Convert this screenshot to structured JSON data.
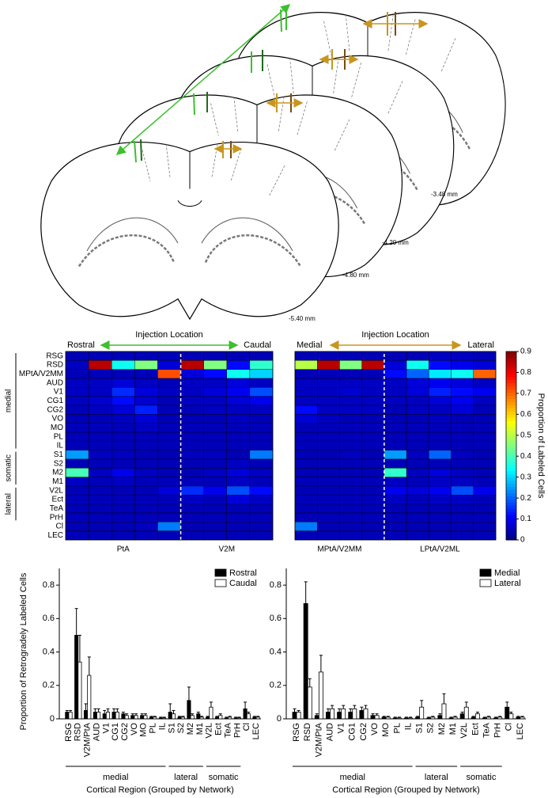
{
  "brain_sections": {
    "levels": [
      "-3.48 mm",
      "-4.20 mm",
      "-4.80 mm",
      "-5.40 mm"
    ]
  },
  "chart_data": [
    {
      "type": "heatmap",
      "annotation": "Injection Location",
      "direction": [
        "Rostral",
        "Caudal"
      ],
      "arrow_color": "#3dbf2e",
      "row_groups": [
        {
          "name": "medial",
          "rows": [
            "RSG",
            "RSD",
            "MPtA/V2MM",
            "AUD",
            "V1",
            "CG1",
            "CG2",
            "VO",
            "MO",
            "PL",
            "IL"
          ]
        },
        {
          "name": "somatic",
          "rows": [
            "S1",
            "S2",
            "M2",
            "M1"
          ]
        },
        {
          "name": "lateral",
          "rows": [
            "V2L",
            "Ect",
            "TeA",
            "PrH"
          ]
        },
        {
          "name": null,
          "rows": [
            "Cl",
            "LEC"
          ]
        }
      ],
      "column_groups": [
        {
          "name": "PtA",
          "values": [
            [
              0.05,
              0.05,
              0.05,
              0.05,
              0.05
            ],
            [
              0.06,
              0.85,
              0.35,
              0.45,
              0.08
            ],
            [
              0.05,
              0.05,
              0.05,
              0.05,
              0.72
            ],
            [
              0.06,
              0.06,
              0.08,
              0.06,
              0.05
            ],
            [
              0.06,
              0.06,
              0.15,
              0.08,
              0.06
            ],
            [
              0.06,
              0.07,
              0.12,
              0.07,
              0.05
            ],
            [
              0.05,
              0.06,
              0.08,
              0.14,
              0.05
            ],
            [
              0.05,
              0.05,
              0.06,
              0.08,
              0.05
            ],
            [
              0.05,
              0.05,
              0.05,
              0.06,
              0.05
            ],
            [
              0.05,
              0.05,
              0.05,
              0.05,
              0.05
            ],
            [
              0.05,
              0.05,
              0.05,
              0.05,
              0.05
            ],
            [
              0.25,
              0.06,
              0.06,
              0.05,
              0.05
            ],
            [
              0.05,
              0.05,
              0.05,
              0.05,
              0.05
            ],
            [
              0.4,
              0.06,
              0.1,
              0.06,
              0.05
            ],
            [
              0.06,
              0.05,
              0.06,
              0.05,
              0.05
            ],
            [
              0.05,
              0.05,
              0.05,
              0.05,
              0.08
            ],
            [
              0.05,
              0.05,
              0.05,
              0.05,
              0.05
            ],
            [
              0.05,
              0.05,
              0.05,
              0.05,
              0.05
            ],
            [
              0.05,
              0.05,
              0.05,
              0.05,
              0.05
            ],
            [
              0.05,
              0.05,
              0.05,
              0.06,
              0.22
            ],
            [
              0.05,
              0.05,
              0.05,
              0.05,
              0.05
            ]
          ]
        },
        {
          "name": "V2M",
          "values": [
            [
              0.05,
              0.05,
              0.05,
              0.05
            ],
            [
              0.85,
              0.45,
              0.12,
              0.38
            ],
            [
              0.08,
              0.12,
              0.35,
              0.3
            ],
            [
              0.06,
              0.06,
              0.08,
              0.06
            ],
            [
              0.06,
              0.08,
              0.1,
              0.18
            ],
            [
              0.06,
              0.06,
              0.08,
              0.1
            ],
            [
              0.05,
              0.06,
              0.06,
              0.06
            ],
            [
              0.05,
              0.05,
              0.06,
              0.05
            ],
            [
              0.05,
              0.05,
              0.05,
              0.05
            ],
            [
              0.05,
              0.05,
              0.05,
              0.05
            ],
            [
              0.05,
              0.05,
              0.05,
              0.05
            ],
            [
              0.06,
              0.06,
              0.05,
              0.22
            ],
            [
              0.05,
              0.05,
              0.06,
              0.05
            ],
            [
              0.05,
              0.06,
              0.08,
              0.06
            ],
            [
              0.05,
              0.05,
              0.06,
              0.05
            ],
            [
              0.15,
              0.1,
              0.18,
              0.12
            ],
            [
              0.06,
              0.05,
              0.08,
              0.06
            ],
            [
              0.05,
              0.05,
              0.05,
              0.05
            ],
            [
              0.05,
              0.05,
              0.05,
              0.05
            ],
            [
              0.05,
              0.05,
              0.05,
              0.05
            ],
            [
              0.05,
              0.05,
              0.05,
              0.05
            ]
          ]
        }
      ]
    },
    {
      "type": "heatmap",
      "annotation": "Injection Location",
      "direction": [
        "Medial",
        "Lateral"
      ],
      "arrow_color": "#c8961e",
      "column_groups": [
        {
          "name": "MPtA/V2MM",
          "values": [
            [
              0.05,
              0.05,
              0.05,
              0.05
            ],
            [
              0.5,
              0.85,
              0.45,
              0.85
            ],
            [
              0.05,
              0.05,
              0.05,
              0.05
            ],
            [
              0.06,
              0.06,
              0.06,
              0.06
            ],
            [
              0.06,
              0.06,
              0.07,
              0.06
            ],
            [
              0.06,
              0.06,
              0.06,
              0.06
            ],
            [
              0.12,
              0.06,
              0.06,
              0.06
            ],
            [
              0.08,
              0.06,
              0.05,
              0.05
            ],
            [
              0.05,
              0.05,
              0.05,
              0.05
            ],
            [
              0.05,
              0.05,
              0.05,
              0.05
            ],
            [
              0.05,
              0.05,
              0.05,
              0.05
            ],
            [
              0.05,
              0.05,
              0.06,
              0.05
            ],
            [
              0.05,
              0.05,
              0.05,
              0.05
            ],
            [
              0.05,
              0.05,
              0.05,
              0.05
            ],
            [
              0.05,
              0.05,
              0.05,
              0.05
            ],
            [
              0.05,
              0.05,
              0.05,
              0.05
            ],
            [
              0.05,
              0.05,
              0.05,
              0.05
            ],
            [
              0.05,
              0.05,
              0.05,
              0.05
            ],
            [
              0.05,
              0.05,
              0.05,
              0.05
            ],
            [
              0.22,
              0.05,
              0.05,
              0.05
            ],
            [
              0.05,
              0.05,
              0.05,
              0.05
            ]
          ]
        },
        {
          "name": "LPtA/V2ML",
          "values": [
            [
              0.05,
              0.05,
              0.06,
              0.06,
              0.05
            ],
            [
              0.08,
              0.35,
              0.12,
              0.1,
              0.08
            ],
            [
              0.12,
              0.2,
              0.32,
              0.35,
              0.7
            ],
            [
              0.06,
              0.08,
              0.1,
              0.08,
              0.06
            ],
            [
              0.06,
              0.08,
              0.14,
              0.12,
              0.1
            ],
            [
              0.06,
              0.06,
              0.08,
              0.1,
              0.06
            ],
            [
              0.05,
              0.06,
              0.06,
              0.08,
              0.05
            ],
            [
              0.05,
              0.05,
              0.06,
              0.05,
              0.05
            ],
            [
              0.05,
              0.05,
              0.05,
              0.05,
              0.05
            ],
            [
              0.05,
              0.05,
              0.05,
              0.05,
              0.05
            ],
            [
              0.05,
              0.05,
              0.05,
              0.05,
              0.05
            ],
            [
              0.25,
              0.06,
              0.2,
              0.06,
              0.05
            ],
            [
              0.05,
              0.05,
              0.05,
              0.05,
              0.05
            ],
            [
              0.38,
              0.06,
              0.08,
              0.06,
              0.05
            ],
            [
              0.06,
              0.05,
              0.06,
              0.06,
              0.05
            ],
            [
              0.1,
              0.08,
              0.1,
              0.18,
              0.1
            ],
            [
              0.06,
              0.05,
              0.06,
              0.06,
              0.05
            ],
            [
              0.05,
              0.05,
              0.05,
              0.05,
              0.05
            ],
            [
              0.05,
              0.05,
              0.05,
              0.05,
              0.05
            ],
            [
              0.05,
              0.05,
              0.05,
              0.05,
              0.05
            ],
            [
              0.05,
              0.05,
              0.05,
              0.05,
              0.05
            ]
          ]
        }
      ],
      "colorbar": {
        "label": "Proportion of Labeled Cells",
        "clim": [
          0,
          0.9
        ],
        "ticks": [
          0,
          0.1,
          0.2,
          0.3,
          0.4,
          0.5,
          0.6,
          0.7,
          0.8,
          0.9
        ]
      }
    },
    {
      "type": "bar",
      "ylabel": "Proportion of Retrogradely Labeled Cells",
      "xlabel": "Cortical Region (Grouped by Network)",
      "legend": "upper right",
      "category_groups": [
        {
          "name": "medial",
          "categories": [
            "RSG",
            "RSD",
            "V2M/PtA",
            "AUD",
            "V1",
            "CG1",
            "CG2",
            "VO",
            "MO",
            "PL",
            "IL"
          ]
        },
        {
          "name": "lateral",
          "categories": [
            "S1",
            "S2",
            "M2",
            "M1"
          ]
        },
        {
          "name": "somatic",
          "categories": [
            "V2L",
            "Ect",
            "TeA",
            "PrH"
          ]
        },
        {
          "name": null,
          "categories": [
            "Cl",
            "LEC"
          ]
        }
      ],
      "series": [
        {
          "name": "Rostral",
          "color": "#000000",
          "values": [
            0.04,
            0.5,
            0.05,
            0.04,
            0.03,
            0.04,
            0.03,
            0.02,
            0.02,
            0.01,
            0.005,
            0.04,
            0.01,
            0.11,
            0.03,
            0.01,
            0.01,
            0.005,
            0.005,
            0.06,
            0.01
          ],
          "errors": [
            0.01,
            0.16,
            0.04,
            0.02,
            0.02,
            0.02,
            0.01,
            0.01,
            0.01,
            0.005,
            0.005,
            0.05,
            0.005,
            0.08,
            0.01,
            0.005,
            0.005,
            0.005,
            0.005,
            0.04,
            0.005
          ]
        },
        {
          "name": "Caudal",
          "color": "#ffffff",
          "values": [
            0.04,
            0.34,
            0.26,
            0.04,
            0.04,
            0.04,
            0.02,
            0.02,
            0.02,
            0.01,
            0.005,
            0.03,
            0.01,
            0.02,
            0.01,
            0.07,
            0.02,
            0.01,
            0.005,
            0.03,
            0.01
          ],
          "errors": [
            0.01,
            0.16,
            0.11,
            0.02,
            0.02,
            0.02,
            0.01,
            0.01,
            0.01,
            0.005,
            0.005,
            0.02,
            0.005,
            0.01,
            0.005,
            0.03,
            0.01,
            0.005,
            0.005,
            0.01,
            0.005
          ]
        }
      ],
      "ylim": [
        0,
        0.9
      ],
      "yticks": [
        0,
        0.2,
        0.4,
        0.6,
        0.8
      ]
    },
    {
      "type": "bar",
      "xlabel": "Cortical Region (Grouped by Network)",
      "legend": "upper right",
      "category_groups": [
        {
          "name": "medial",
          "categories": [
            "RSG",
            "RSD",
            "V2M/PtA",
            "AUD",
            "V1",
            "CG1",
            "CG2",
            "VO",
            "MO",
            "PL",
            "IL"
          ]
        },
        {
          "name": "lateral",
          "categories": [
            "S1",
            "S2",
            "M2",
            "M1"
          ]
        },
        {
          "name": "somatic",
          "categories": [
            "V2L",
            "Ect",
            "TeA",
            "PrH"
          ]
        },
        {
          "name": null,
          "categories": [
            "Cl",
            "LEC"
          ]
        }
      ],
      "series": [
        {
          "name": "Medial",
          "color": "#000000",
          "values": [
            0.04,
            0.69,
            0.02,
            0.04,
            0.04,
            0.04,
            0.05,
            0.02,
            0.01,
            0.005,
            0.005,
            0.01,
            0.005,
            0.02,
            0.005,
            0.03,
            0.01,
            0.005,
            0.005,
            0.07,
            0.01
          ],
          "errors": [
            0.02,
            0.13,
            0.01,
            0.02,
            0.02,
            0.02,
            0.02,
            0.01,
            0.005,
            0.005,
            0.005,
            0.005,
            0.005,
            0.01,
            0.005,
            0.01,
            0.005,
            0.005,
            0.005,
            0.03,
            0.005
          ]
        },
        {
          "name": "Lateral",
          "color": "#ffffff",
          "values": [
            0.04,
            0.19,
            0.28,
            0.06,
            0.06,
            0.06,
            0.06,
            0.02,
            0.01,
            0.005,
            0.005,
            0.07,
            0.01,
            0.09,
            0.01,
            0.07,
            0.03,
            0.01,
            0.01,
            0.03,
            0.01
          ],
          "errors": [
            0.01,
            0.05,
            0.1,
            0.02,
            0.02,
            0.02,
            0.02,
            0.01,
            0.005,
            0.005,
            0.005,
            0.04,
            0.005,
            0.06,
            0.005,
            0.03,
            0.01,
            0.005,
            0.005,
            0.01,
            0.005
          ]
        }
      ],
      "ylim": [
        0,
        0.9
      ],
      "yticks": [
        0,
        0.2,
        0.4,
        0.6,
        0.8
      ]
    }
  ]
}
